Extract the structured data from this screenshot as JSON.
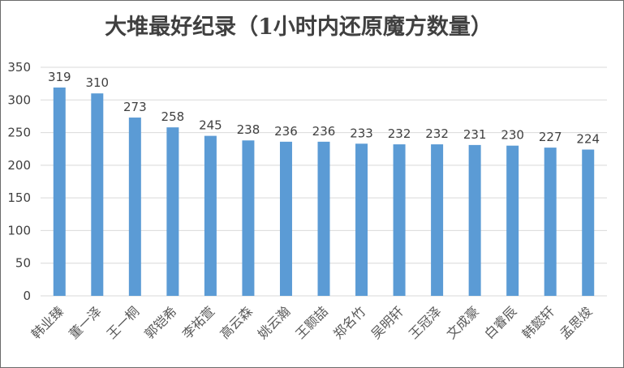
{
  "chart_data": {
    "type": "bar",
    "title": "大堆最好纪录（1小时内还原魔方数量）",
    "xlabel": "",
    "ylabel": "",
    "categories": [
      "韩业臻",
      "董一泽",
      "王一桐",
      "郭铠希",
      "李祐萱",
      "高云森",
      "姚云瀚",
      "王颢喆",
      "郑名竹",
      "吴明轩",
      "王冠泽",
      "文成豪",
      "白睿辰",
      "韩懿轩",
      "孟思焌"
    ],
    "values": [
      319,
      310,
      273,
      258,
      245,
      238,
      236,
      236,
      233,
      232,
      232,
      231,
      230,
      227,
      224
    ],
    "ylim": [
      0,
      350
    ],
    "yticks": [
      0,
      50,
      100,
      150,
      200,
      250,
      300,
      350
    ],
    "grid": true,
    "legend": "none",
    "bar_color": "#5b9bd5"
  }
}
